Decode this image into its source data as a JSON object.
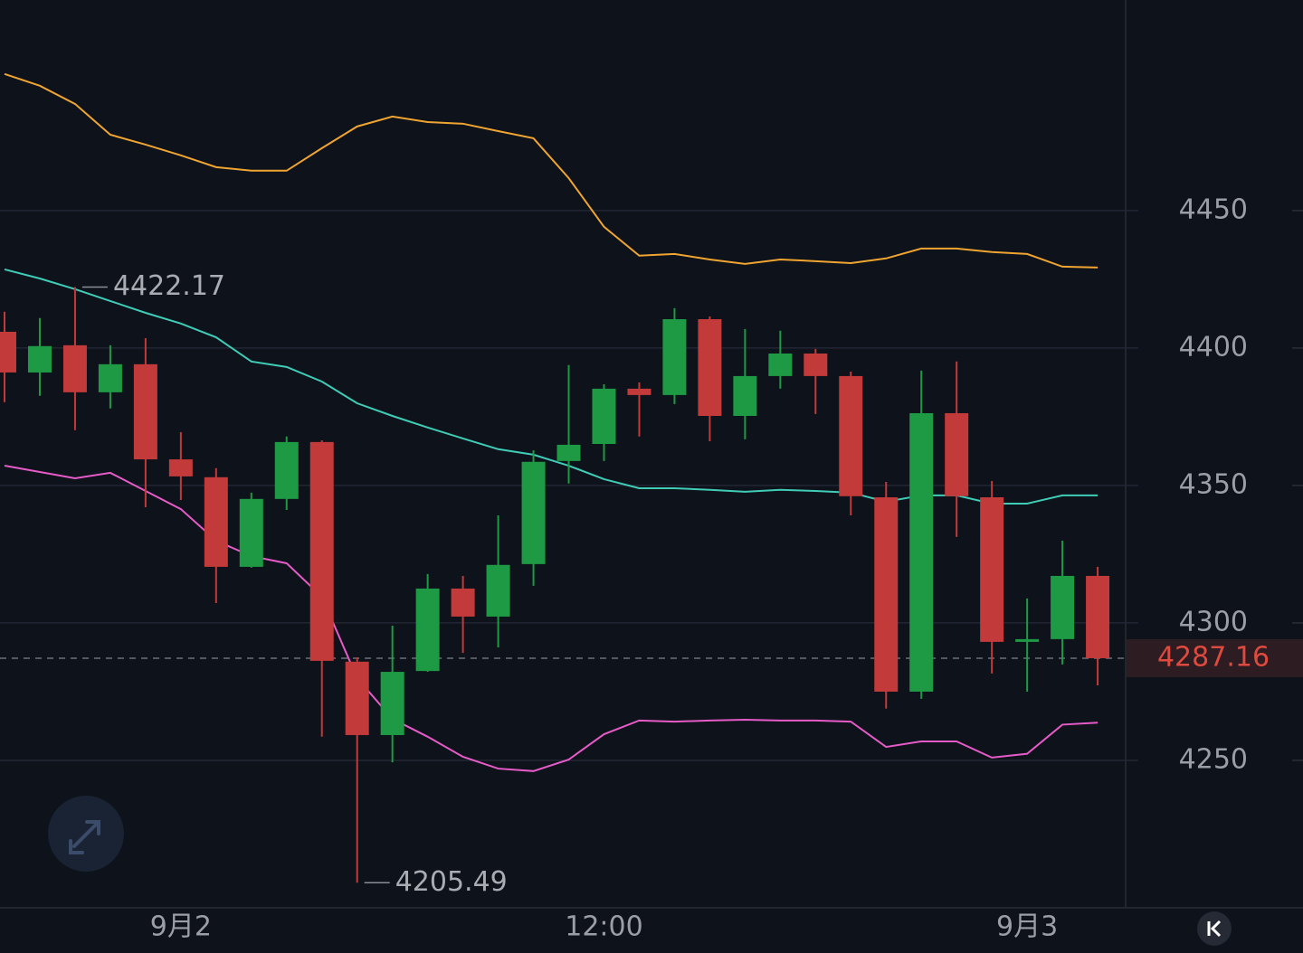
{
  "chart_data": {
    "type": "candlestick",
    "categories": [
      null,
      null,
      null,
      null,
      null,
      "9月2",
      null,
      null,
      null,
      null,
      null,
      null,
      null,
      null,
      null,
      null,
      null,
      "12:00",
      null,
      null,
      null,
      null,
      null,
      null,
      null,
      null,
      null,
      null,
      null,
      "9月3",
      null,
      null
    ],
    "open": [
      4405.9,
      4391.1,
      4401.0,
      4383.9,
      4394.1,
      4359.5,
      4353.0,
      4320.4,
      4345.1,
      4365.8,
      4285.9,
      4259.2,
      4282.5,
      4312.5,
      4302.3,
      4321.4,
      4358.9,
      4365.1,
      4385.2,
      4382.9,
      4410.5,
      4375.3,
      4389.8,
      4398.0,
      4389.8,
      4345.7,
      4275.0,
      4376.3,
      4345.7,
      4293.1,
      4294.1,
      4317.1
    ],
    "high": [
      4413.2,
      4410.9,
      4422.17,
      4401.0,
      4403.6,
      4369.4,
      4356.3,
      4347.4,
      4367.8,
      4366.4,
      4287.5,
      4299.0,
      4317.8,
      4317.1,
      4339.1,
      4362.8,
      4393.8,
      4386.8,
      4387.5,
      4414.5,
      4411.5,
      4406.9,
      4406.3,
      4399.7,
      4391.4,
      4351.3,
      4391.8,
      4395.1,
      4351.6,
      4308.9,
      4329.9,
      4320.4
    ],
    "low": [
      4380.3,
      4382.6,
      4370.1,
      4378.0,
      4342.1,
      4344.7,
      4307.2,
      4320.1,
      4341.1,
      4258.6,
      4205.49,
      4249.3,
      4282.2,
      4289.1,
      4291.1,
      4313.5,
      4350.7,
      4358.9,
      4367.8,
      4379.6,
      4366.1,
      4366.8,
      4385.2,
      4376.0,
      4339.1,
      4268.8,
      4272.4,
      4331.3,
      4281.6,
      4275.0,
      4284.9,
      4277.3
    ],
    "close": [
      4391.1,
      4400.7,
      4383.9,
      4394.1,
      4359.5,
      4353.3,
      4320.4,
      4345.1,
      4365.8,
      4286.2,
      4259.2,
      4282.2,
      4312.5,
      4302.3,
      4321.1,
      4358.6,
      4364.8,
      4385.2,
      4382.9,
      4410.5,
      4375.3,
      4389.8,
      4398.0,
      4389.8,
      4346.1,
      4275.0,
      4376.3,
      4346.1,
      4293.1,
      4294.1,
      4317.1,
      4287.16
    ],
    "up_color": "#1f9a44",
    "down_color": "#c23a3a",
    "bands": [
      {
        "color": "#f0a531",
        "values": [
          4499.7,
          4495.4,
          4488.8,
          4477.6,
          4474.0,
          4470.1,
          4465.8,
          4464.5,
          4464.5,
          4472.7,
          4480.6,
          4484.2,
          4482.2,
          4481.6,
          4478.9,
          4476.3,
          4461.8,
          4444.1,
          4433.6,
          4434.2,
          4432.2,
          4430.6,
          4432.2,
          4431.6,
          4430.9,
          4432.6,
          4436.2,
          4436.2,
          4434.9,
          4434.2,
          4429.6,
          4429.3
        ]
      },
      {
        "color": "#3fcdb8",
        "values": [
          4428.6,
          4425.3,
          4421.4,
          4417.1,
          4412.8,
          4408.9,
          4403.9,
          4395.1,
          4393.1,
          4387.8,
          4379.9,
          4375.3,
          4371.1,
          4367.1,
          4363.2,
          4361.2,
          4357.2,
          4352.3,
          4349.0,
          4349.0,
          4348.4,
          4347.7,
          4348.4,
          4348.0,
          4347.4,
          4344.1,
          4346.4,
          4346.4,
          4343.4,
          4343.4,
          4346.4,
          4346.4
        ]
      },
      {
        "color": "#e65bc8",
        "values": [
          4357.2,
          4354.9,
          4352.6,
          4354.6,
          4348.0,
          4341.4,
          4329.9,
          4324.3,
          4321.7,
          4309.5,
          4279.9,
          4265.1,
          4258.6,
          4251.3,
          4247.0,
          4246.1,
          4250.3,
          4259.5,
          4264.5,
          4264.1,
          4264.5,
          4264.8,
          4264.5,
          4264.5,
          4264.1,
          4254.9,
          4256.9,
          4256.9,
          4251.0,
          4252.4,
          4263.0,
          4263.7
        ]
      }
    ],
    "max_label": 4422.17,
    "min_label": 4205.49,
    "last_price": 4287.16,
    "ylim": [
      4196.7,
      4526.6
    ],
    "yticks": [
      4250,
      4300,
      4350,
      4400,
      4450
    ],
    "grid": true
  }
}
